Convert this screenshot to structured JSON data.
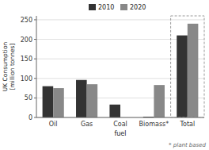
{
  "chart_data": {
    "type": "bar",
    "categories": [
      "Oil",
      "Gas",
      "Coal",
      "Biomass*",
      "Total"
    ],
    "series": [
      {
        "name": "2010",
        "color": "#333333",
        "values": [
          80,
          96,
          33,
          2,
          210
        ]
      },
      {
        "name": "2020",
        "color": "#888888",
        "values": [
          75,
          85,
          0,
          83,
          240
        ]
      }
    ],
    "xlabel": "fuel",
    "ylabel": "UK Consumption\n[million tonnes]",
    "ylim": [
      0,
      260
    ],
    "yticks": [
      0,
      50,
      100,
      150,
      200,
      250
    ],
    "grid": true,
    "legend": "top",
    "annotations": [
      "* plant based"
    ]
  }
}
